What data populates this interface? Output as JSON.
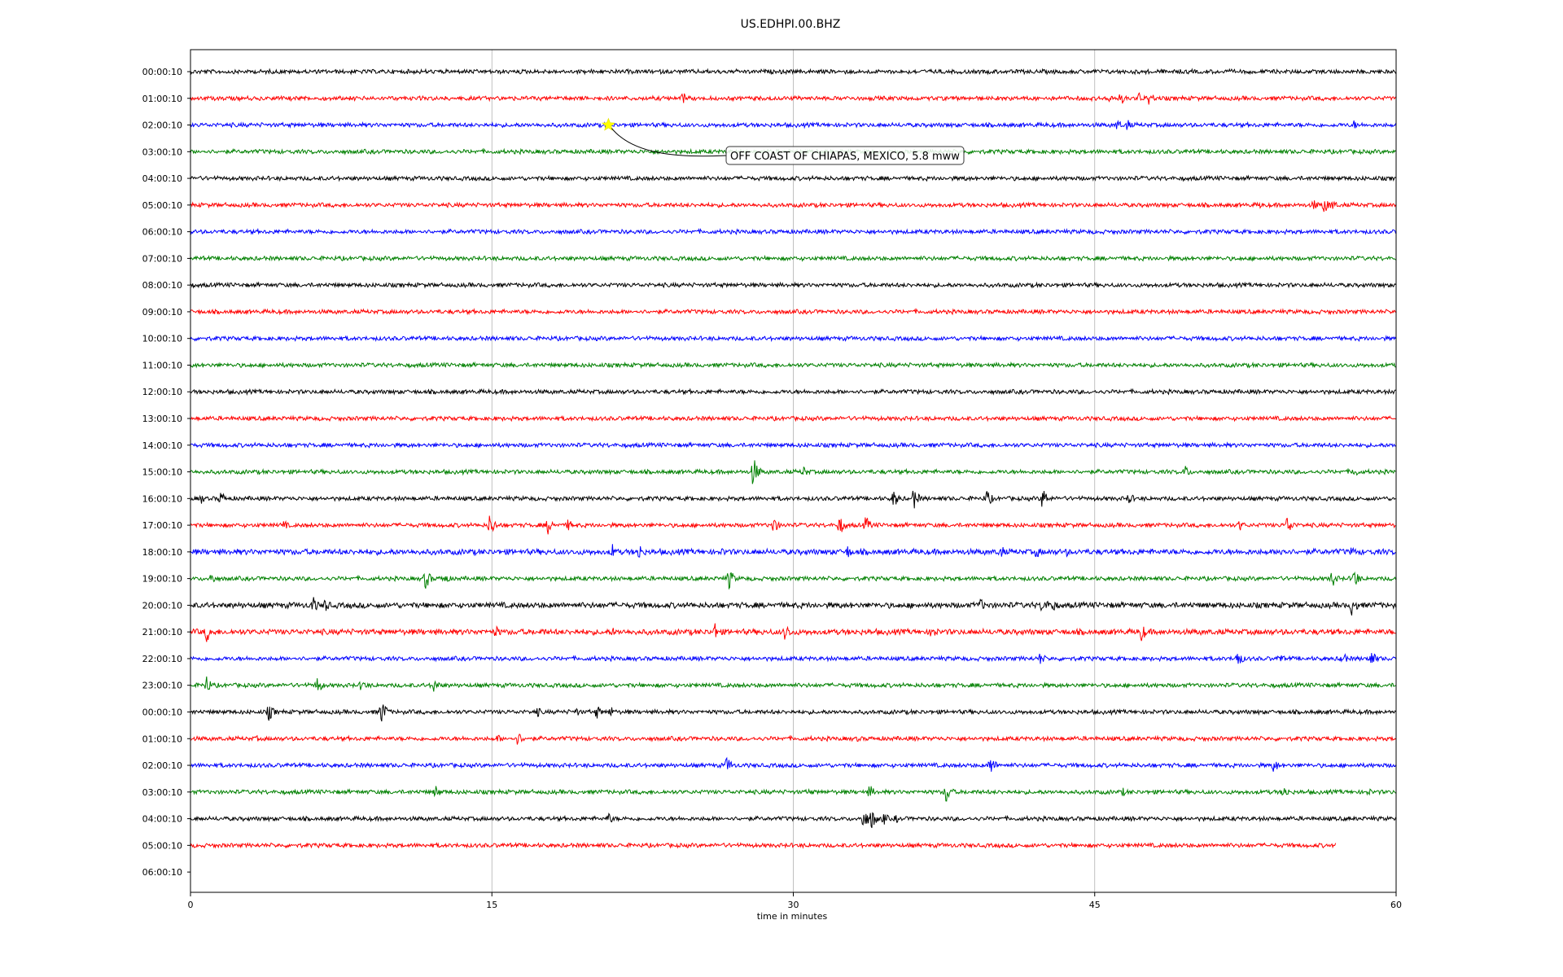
{
  "chart_data": {
    "type": "line",
    "title": "US.EDHPI.00.BHZ",
    "xlabel": "time in minutes",
    "ylabel": "",
    "xlim": [
      0,
      60
    ],
    "x_ticks": [
      0,
      15,
      30,
      45,
      60
    ],
    "grid": "vertical",
    "row_labels": [
      "00:00:10",
      "01:00:10",
      "02:00:10",
      "03:00:10",
      "04:00:10",
      "05:00:10",
      "06:00:10",
      "07:00:10",
      "08:00:10",
      "09:00:10",
      "10:00:10",
      "11:00:10",
      "12:00:10",
      "13:00:10",
      "14:00:10",
      "15:00:10",
      "16:00:10",
      "17:00:10",
      "18:00:10",
      "19:00:10",
      "20:00:10",
      "21:00:10",
      "22:00:10",
      "23:00:10",
      "00:00:10",
      "01:00:10",
      "02:00:10",
      "03:00:10",
      "04:00:10",
      "05:00:10",
      "06:00:10"
    ],
    "trace_colors": [
      "#000000",
      "#ff0000",
      "#0000ff",
      "#008000"
    ],
    "rows": [
      {
        "end": 60,
        "noise": 3,
        "events": [
          [
            36,
            4
          ]
        ]
      },
      {
        "end": 60,
        "noise": 3,
        "events": [
          [
            24.5,
            8
          ],
          [
            45.7,
            7
          ],
          [
            46.3,
            9
          ],
          [
            47.2,
            8
          ],
          [
            47.7,
            10
          ]
        ]
      },
      {
        "end": 60,
        "noise": 3,
        "events": [
          [
            46.1,
            8
          ],
          [
            46.6,
            8
          ],
          [
            57.9,
            6
          ]
        ]
      },
      {
        "end": 60,
        "noise": 3,
        "events": [
          [
            23.1,
            4
          ]
        ]
      },
      {
        "end": 60,
        "noise": 3,
        "events": [
          [
            38.5,
            4
          ]
        ]
      },
      {
        "end": 60,
        "noise": 3,
        "events": [
          [
            53.2,
            5
          ],
          [
            55.9,
            8
          ],
          [
            56.4,
            12
          ],
          [
            56.8,
            8
          ]
        ]
      },
      {
        "end": 60,
        "noise": 3,
        "events": []
      },
      {
        "end": 60,
        "noise": 3,
        "events": []
      },
      {
        "end": 60,
        "noise": 3,
        "events": []
      },
      {
        "end": 60,
        "noise": 3,
        "events": []
      },
      {
        "end": 60,
        "noise": 3,
        "events": []
      },
      {
        "end": 60,
        "noise": 3,
        "events": []
      },
      {
        "end": 60,
        "noise": 3,
        "events": []
      },
      {
        "end": 60,
        "noise": 3,
        "events": []
      },
      {
        "end": 60,
        "noise": 3,
        "events": []
      },
      {
        "end": 60,
        "noise": 3,
        "events": [
          [
            28.0,
            20
          ],
          [
            30.5,
            8
          ],
          [
            49.5,
            9
          ],
          [
            57.9,
            8
          ]
        ]
      },
      {
        "end": 60,
        "noise": 3,
        "events": [
          [
            0.5,
            8
          ],
          [
            1.5,
            10
          ],
          [
            35,
            12
          ],
          [
            36,
            14
          ],
          [
            39.6,
            14
          ],
          [
            42.4,
            15
          ],
          [
            46.7,
            9
          ]
        ]
      },
      {
        "end": 60,
        "noise": 3,
        "events": [
          [
            4.6,
            8
          ],
          [
            14.9,
            16
          ],
          [
            17.8,
            12
          ],
          [
            18.8,
            8
          ],
          [
            29,
            12
          ],
          [
            32.3,
            14
          ],
          [
            33.6,
            12
          ],
          [
            52.2,
            8
          ],
          [
            54.6,
            14
          ]
        ]
      },
      {
        "end": 60,
        "noise": 4,
        "events": [
          [
            21,
            10
          ],
          [
            22.3,
            12
          ],
          [
            26.5,
            6
          ],
          [
            32.7,
            9
          ],
          [
            40.3,
            10
          ],
          [
            42.1,
            9
          ],
          [
            43.6,
            6
          ],
          [
            54.3,
            9
          ],
          [
            57.8,
            8
          ]
        ]
      },
      {
        "end": 60,
        "noise": 3,
        "events": [
          [
            1.0,
            10
          ],
          [
            11.7,
            14
          ],
          [
            12.6,
            9
          ],
          [
            26.8,
            14
          ],
          [
            56.8,
            12
          ],
          [
            57.9,
            14
          ]
        ]
      },
      {
        "end": 60,
        "noise": 4,
        "events": [
          [
            6.1,
            12
          ],
          [
            6.7,
            10
          ],
          [
            39.3,
            9
          ],
          [
            42.4,
            14
          ],
          [
            42.9,
            10
          ],
          [
            57.8,
            14
          ]
        ]
      },
      {
        "end": 60,
        "noise": 4,
        "events": [
          [
            0.8,
            14
          ],
          [
            15.2,
            9
          ],
          [
            17.5,
            6
          ],
          [
            21,
            6
          ],
          [
            26.1,
            12
          ],
          [
            29.6,
            12
          ],
          [
            36.9,
            12
          ],
          [
            47.3,
            14
          ],
          [
            50,
            6
          ]
        ]
      },
      {
        "end": 60,
        "noise": 3,
        "events": [
          [
            42.3,
            9
          ],
          [
            52.1,
            12
          ],
          [
            54.2,
            8
          ],
          [
            57.3,
            10
          ],
          [
            58.7,
            14
          ]
        ]
      },
      {
        "end": 60,
        "noise": 3,
        "events": [
          [
            0.8,
            12
          ],
          [
            6.3,
            12
          ],
          [
            8.5,
            9
          ],
          [
            12.1,
            10
          ]
        ]
      },
      {
        "end": 60,
        "noise": 3,
        "events": [
          [
            3.9,
            12
          ],
          [
            9.5,
            18
          ],
          [
            17.2,
            9
          ],
          [
            19.2,
            6
          ],
          [
            20.2,
            10
          ],
          [
            20.9,
            8
          ]
        ]
      },
      {
        "end": 60,
        "noise": 3,
        "events": [
          [
            3.3,
            4
          ],
          [
            15.3,
            6
          ],
          [
            16.3,
            10
          ],
          [
            33.2,
            4
          ]
        ]
      },
      {
        "end": 60,
        "noise": 3,
        "events": [
          [
            26.7,
            12
          ],
          [
            39.8,
            14
          ],
          [
            53.9,
            10
          ]
        ]
      },
      {
        "end": 60,
        "noise": 3,
        "events": [
          [
            12.2,
            9
          ],
          [
            30.8,
            6
          ],
          [
            33.8,
            10
          ],
          [
            37.6,
            16
          ],
          [
            46.4,
            6
          ],
          [
            54.4,
            10
          ],
          [
            58.6,
            6
          ]
        ]
      },
      {
        "end": 60,
        "noise": 3,
        "events": [
          [
            20.8,
            8
          ],
          [
            33.5,
            16
          ],
          [
            33.9,
            14
          ],
          [
            34.5,
            9
          ],
          [
            35.1,
            6
          ]
        ]
      },
      {
        "end": 57,
        "noise": 3,
        "events": []
      },
      {
        "end": 0,
        "noise": 0,
        "events": []
      }
    ],
    "annotations": [
      {
        "text": "OFF COAST OF CHIAPAS, MEXICO, 5.8 mww",
        "x": 20.8,
        "row": 2
      }
    ]
  }
}
